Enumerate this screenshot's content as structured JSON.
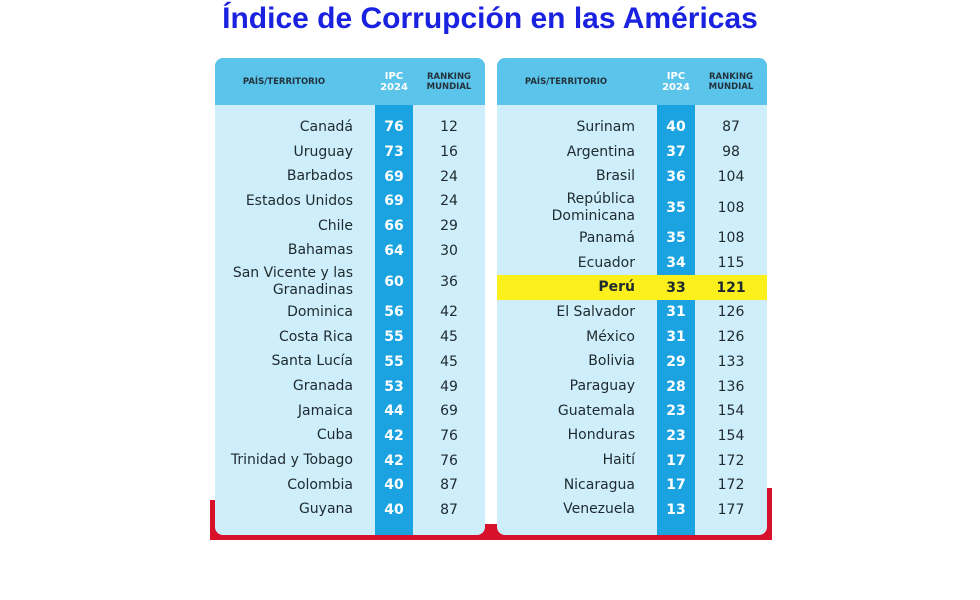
{
  "title": "Índice de Corrupción en las Américas",
  "tables": [
    {
      "headers": [
        "PAÍS/TERRITORIO",
        "IPC\n2024",
        "RANKING\nMUNDIAL"
      ],
      "rows": [
        [
          "Canadá",
          76,
          12
        ],
        [
          "Uruguay",
          73,
          16
        ],
        [
          "Barbados",
          69,
          24
        ],
        [
          "Estados Unidos",
          69,
          24
        ],
        [
          "Chile",
          66,
          29
        ],
        [
          "Bahamas",
          64,
          30
        ],
        [
          "San Vicente y las\nGranadinas",
          60,
          36
        ],
        [
          "Dominica",
          56,
          42
        ],
        [
          "Costa Rica",
          55,
          45
        ],
        [
          "Santa Lucía",
          55,
          45
        ],
        [
          "Granada",
          53,
          49
        ],
        [
          "Jamaica",
          44,
          69
        ],
        [
          "Cuba",
          42,
          76
        ],
        [
          "Trinidad y Tobago",
          42,
          76
        ],
        [
          "Colombia",
          40,
          87
        ],
        [
          "Guyana",
          40,
          87
        ]
      ]
    },
    {
      "headers": [
        "PAÍS/TERRITORIO",
        "IPC\n2024",
        "RANKING\nMUNDIAL"
      ],
      "highlight_row": 6,
      "rows": [
        [
          "Surinam",
          40,
          87
        ],
        [
          "Argentina",
          37,
          98
        ],
        [
          "Brasil",
          36,
          104
        ],
        [
          "República\nDominicana",
          35,
          108
        ],
        [
          "Panamá",
          35,
          108
        ],
        [
          "Ecuador",
          34,
          115
        ],
        [
          "Perú",
          33,
          121
        ],
        [
          "El Salvador",
          31,
          126
        ],
        [
          "México",
          31,
          126
        ],
        [
          "Bolivia",
          29,
          133
        ],
        [
          "Paraguay",
          28,
          136
        ],
        [
          "Guatemala",
          23,
          154
        ],
        [
          "Honduras",
          23,
          154
        ],
        [
          "Haití",
          17,
          172
        ],
        [
          "Nicaragua",
          17,
          172
        ],
        [
          "Venezuela",
          13,
          177
        ]
      ]
    }
  ]
}
